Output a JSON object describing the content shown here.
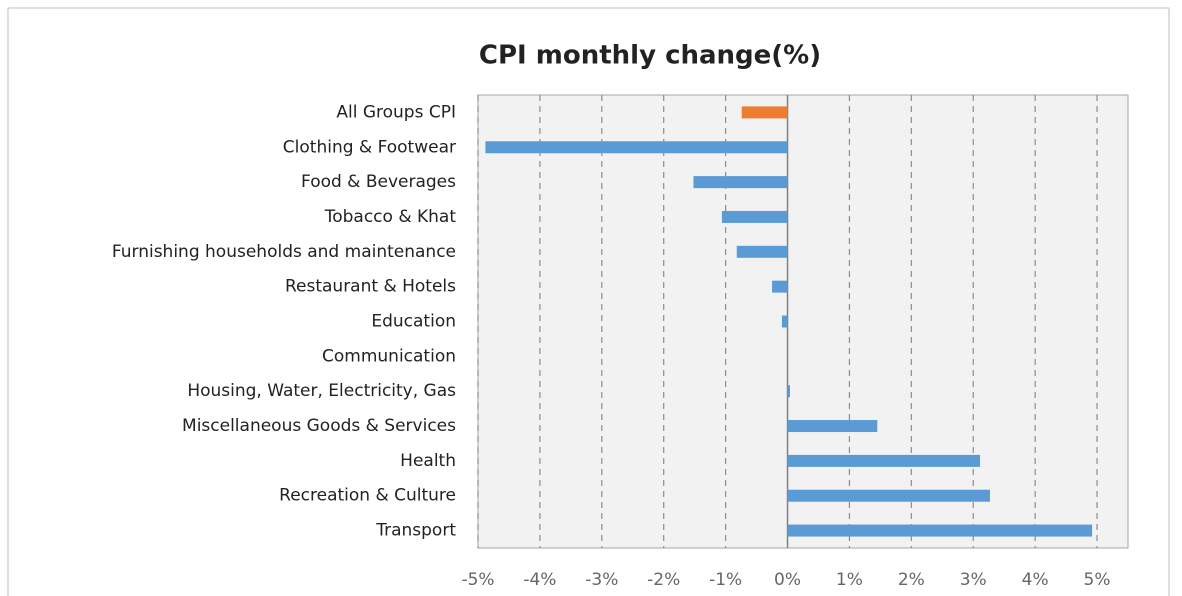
{
  "chart_data": {
    "type": "bar",
    "orientation": "horizontal",
    "title": "CPI monthly change(%)",
    "categories": [
      "All Groups CPI",
      "Clothing & Footwear",
      "Food & Beverages",
      "Tobacco & Khat",
      "Furnishing households and maintenance",
      "Restaurant & Hotels",
      "Education",
      "Communication",
      "Housing, Water, Electricity, Gas",
      "Miscellaneous Goods & Services",
      "Health",
      "Recreation & Culture",
      "Transport"
    ],
    "values": [
      -0.74,
      -4.88,
      -1.52,
      -1.06,
      -0.82,
      -0.25,
      -0.09,
      0,
      0.04,
      1.45,
      3.11,
      3.27,
      4.92
    ],
    "colors": [
      "#ed7d31",
      "#5b9bd5",
      "#5b9bd5",
      "#5b9bd5",
      "#5b9bd5",
      "#5b9bd5",
      "#5b9bd5",
      "#5b9bd5",
      "#5b9bd5",
      "#5b9bd5",
      "#5b9bd5",
      "#5b9bd5",
      "#5b9bd5"
    ],
    "xlim": [
      -5,
      5.5
    ],
    "xticks": [
      {
        "value": -5,
        "label": "-5%"
      },
      {
        "value": -4,
        "label": "-4%"
      },
      {
        "value": -3,
        "label": "-3%"
      },
      {
        "value": -2,
        "label": "-2%"
      },
      {
        "value": -1,
        "label": "-1%"
      },
      {
        "value": 0,
        "label": "0%"
      },
      {
        "value": 1,
        "label": "1%"
      },
      {
        "value": 2,
        "label": "2%"
      },
      {
        "value": 3,
        "label": "3%"
      },
      {
        "value": 4,
        "label": "4%"
      },
      {
        "value": 5,
        "label": "5%"
      }
    ],
    "grid": true
  }
}
